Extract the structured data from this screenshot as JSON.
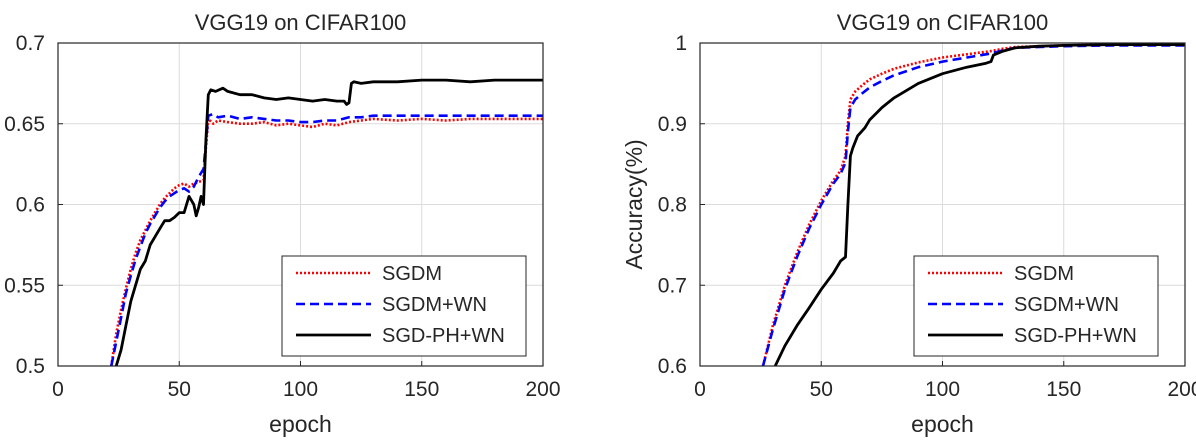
{
  "chart_data": [
    {
      "type": "line",
      "title": "VGG19 on CIFAR100",
      "xlabel": "epoch",
      "ylabel": "",
      "xlim": [
        0,
        200
      ],
      "ylim": [
        0.5,
        0.7
      ],
      "xticks": [
        "0",
        "50",
        "100",
        "150",
        "200"
      ],
      "yticks": [
        "0.5",
        "0.55",
        "0.6",
        "0.65",
        "0.7"
      ],
      "grid": true,
      "legend_position": "bottom-right",
      "series": [
        {
          "name": "SGDM",
          "color": "#ff0000",
          "style": "dotted",
          "x": [
            22,
            24,
            26,
            28,
            30,
            32,
            34,
            36,
            38,
            40,
            42,
            44,
            46,
            48,
            50,
            52,
            54,
            56,
            58,
            60,
            61,
            62,
            64,
            66,
            70,
            75,
            80,
            85,
            90,
            95,
            100,
            105,
            110,
            115,
            120,
            125,
            130,
            140,
            150,
            160,
            170,
            180,
            190,
            200
          ],
          "y": [
            0.5,
            0.52,
            0.535,
            0.548,
            0.56,
            0.57,
            0.578,
            0.584,
            0.59,
            0.595,
            0.6,
            0.604,
            0.607,
            0.61,
            0.612,
            0.613,
            0.611,
            0.613,
            0.614,
            0.615,
            0.635,
            0.653,
            0.65,
            0.652,
            0.651,
            0.65,
            0.65,
            0.651,
            0.649,
            0.65,
            0.649,
            0.648,
            0.65,
            0.649,
            0.651,
            0.652,
            0.653,
            0.652,
            0.653,
            0.652,
            0.653,
            0.653,
            0.653,
            0.653
          ]
        },
        {
          "name": "SGDM+WN",
          "color": "#0000ff",
          "style": "dashed",
          "x": [
            22,
            24,
            26,
            28,
            30,
            32,
            34,
            36,
            38,
            40,
            42,
            44,
            46,
            48,
            50,
            52,
            54,
            56,
            58,
            60,
            61,
            62,
            64,
            66,
            70,
            75,
            80,
            85,
            90,
            95,
            100,
            105,
            110,
            115,
            120,
            125,
            130,
            140,
            150,
            160,
            170,
            180,
            190,
            200
          ],
          "y": [
            0.5,
            0.515,
            0.53,
            0.545,
            0.556,
            0.566,
            0.574,
            0.582,
            0.588,
            0.593,
            0.598,
            0.602,
            0.605,
            0.607,
            0.609,
            0.61,
            0.608,
            0.611,
            0.617,
            0.622,
            0.638,
            0.655,
            0.656,
            0.654,
            0.655,
            0.653,
            0.654,
            0.653,
            0.652,
            0.652,
            0.651,
            0.651,
            0.652,
            0.652,
            0.654,
            0.654,
            0.655,
            0.655,
            0.655,
            0.655,
            0.655,
            0.655,
            0.655,
            0.655
          ]
        },
        {
          "name": "SGD-PH+WN",
          "color": "#000000",
          "style": "solid",
          "x": [
            24,
            26,
            28,
            30,
            32,
            34,
            36,
            38,
            40,
            42,
            44,
            46,
            48,
            50,
            52,
            54,
            56,
            57,
            58,
            59,
            60,
            61,
            62,
            63,
            65,
            68,
            70,
            75,
            80,
            85,
            90,
            95,
            100,
            105,
            110,
            115,
            118,
            119,
            120,
            121,
            122,
            125,
            130,
            140,
            150,
            160,
            170,
            180,
            190,
            200
          ],
          "y": [
            0.5,
            0.51,
            0.525,
            0.54,
            0.55,
            0.56,
            0.565,
            0.575,
            0.58,
            0.585,
            0.59,
            0.59,
            0.592,
            0.595,
            0.595,
            0.605,
            0.6,
            0.593,
            0.598,
            0.605,
            0.6,
            0.64,
            0.668,
            0.671,
            0.67,
            0.672,
            0.67,
            0.668,
            0.668,
            0.666,
            0.665,
            0.666,
            0.665,
            0.664,
            0.665,
            0.664,
            0.664,
            0.662,
            0.663,
            0.675,
            0.676,
            0.675,
            0.676,
            0.676,
            0.677,
            0.677,
            0.676,
            0.677,
            0.677,
            0.677
          ]
        }
      ]
    },
    {
      "type": "line",
      "title": "VGG19 on CIFAR100",
      "xlabel": "epoch",
      "ylabel": "Accuracy(%)",
      "xlim": [
        0,
        200
      ],
      "ylim": [
        0.6,
        1
      ],
      "xticks": [
        "0",
        "50",
        "100",
        "150",
        "200"
      ],
      "yticks": [
        "0.6",
        "0.7",
        "0.8",
        "0.9",
        "1"
      ],
      "grid": true,
      "legend_position": "bottom-right",
      "series": [
        {
          "name": "SGDM",
          "color": "#ff0000",
          "style": "dotted",
          "x": [
            26,
            30,
            35,
            40,
            45,
            50,
            55,
            58,
            60,
            61,
            62,
            64,
            67,
            70,
            75,
            80,
            90,
            100,
            110,
            120,
            125,
            130,
            140,
            150,
            170,
            200
          ],
          "y": [
            0.6,
            0.65,
            0.7,
            0.74,
            0.775,
            0.805,
            0.83,
            0.842,
            0.86,
            0.9,
            0.93,
            0.94,
            0.948,
            0.955,
            0.962,
            0.968,
            0.976,
            0.982,
            0.986,
            0.99,
            0.993,
            0.995,
            0.996,
            0.997,
            0.998,
            0.998
          ]
        },
        {
          "name": "SGDM+WN",
          "color": "#0000ff",
          "style": "dashed",
          "x": [
            26,
            30,
            35,
            40,
            45,
            50,
            55,
            58,
            60,
            61,
            62,
            64,
            67,
            70,
            75,
            80,
            90,
            100,
            110,
            120,
            125,
            130,
            140,
            150,
            170,
            200
          ],
          "y": [
            0.6,
            0.645,
            0.695,
            0.735,
            0.77,
            0.8,
            0.826,
            0.838,
            0.852,
            0.89,
            0.92,
            0.93,
            0.938,
            0.945,
            0.953,
            0.96,
            0.97,
            0.977,
            0.982,
            0.987,
            0.991,
            0.994,
            0.995,
            0.996,
            0.997,
            0.997
          ]
        },
        {
          "name": "SGD-PH+WN",
          "color": "#000000",
          "style": "solid",
          "x": [
            31,
            35,
            40,
            45,
            50,
            55,
            58,
            60,
            61,
            62,
            63,
            65,
            68,
            70,
            75,
            80,
            90,
            100,
            110,
            118,
            120,
            121,
            125,
            130,
            140,
            150,
            170,
            200
          ],
          "y": [
            0.6,
            0.625,
            0.65,
            0.672,
            0.695,
            0.715,
            0.73,
            0.735,
            0.8,
            0.86,
            0.87,
            0.885,
            0.895,
            0.905,
            0.92,
            0.932,
            0.95,
            0.962,
            0.97,
            0.975,
            0.977,
            0.985,
            0.99,
            0.994,
            0.996,
            0.997,
            0.998,
            0.998
          ]
        }
      ]
    }
  ]
}
